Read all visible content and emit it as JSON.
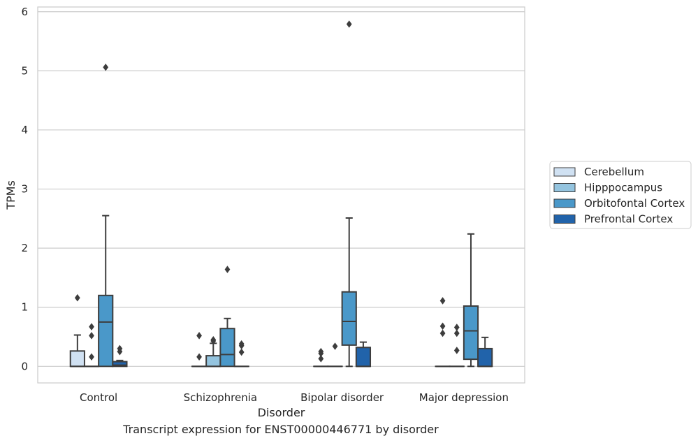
{
  "caption": "Transcript expression for ENST00000446771 by disorder",
  "chart_data": {
    "type": "box",
    "xlabel": "Disorder",
    "ylabel": "TPMs",
    "ylim": [
      -0.28,
      6.08
    ],
    "yticks": [
      0,
      1,
      2,
      3,
      4,
      5,
      6
    ],
    "grid": "horizontal",
    "legend_position": "right",
    "categories": [
      "Control",
      "Schizophrenia",
      "Bipolar disorder",
      "Major depression"
    ],
    "series": [
      {
        "name": "Cerebellum",
        "color": "#d0e1f2",
        "boxes": [
          {
            "whislo": 0,
            "q1": 0,
            "med": 0,
            "q3": 0.26,
            "whishi": 0.53,
            "fliers": [
              1.16
            ]
          },
          {
            "whislo": 0,
            "q1": 0,
            "med": 0,
            "q3": 0,
            "whishi": 0,
            "fliers": [
              0.16,
              0.52
            ]
          },
          {
            "whislo": 0,
            "q1": 0,
            "med": 0,
            "q3": 0,
            "whishi": 0,
            "fliers": [
              0.13,
              0.22,
              0.25
            ]
          },
          {
            "whislo": 0,
            "q1": 0,
            "med": 0,
            "q3": 0,
            "whishi": 0,
            "fliers": [
              0.56,
              0.68,
              1.11
            ]
          }
        ]
      },
      {
        "name": "Hipppocampus",
        "color": "#94c4df",
        "boxes": [
          {
            "whislo": 0,
            "q1": 0,
            "med": 0,
            "q3": 0,
            "whishi": 0,
            "fliers": [
              0.16,
              0.52,
              0.67
            ]
          },
          {
            "whislo": 0,
            "q1": 0,
            "med": 0,
            "q3": 0.18,
            "whishi": 0.39,
            "fliers": [
              0.43,
              0.45
            ]
          },
          {
            "whislo": 0,
            "q1": 0,
            "med": 0,
            "q3": 0,
            "whishi": 0,
            "fliers": [
              0.34
            ]
          },
          {
            "whislo": 0,
            "q1": 0,
            "med": 0,
            "q3": 0,
            "whishi": 0,
            "fliers": [
              0.27,
              0.56,
              0.66
            ]
          }
        ]
      },
      {
        "name": "Orbitofontal Cortex",
        "color": "#4a98c9",
        "boxes": [
          {
            "whislo": 0,
            "q1": 0,
            "med": 0.75,
            "q3": 1.2,
            "whishi": 2.55,
            "fliers": [
              5.06
            ]
          },
          {
            "whislo": 0,
            "q1": 0,
            "med": 0.2,
            "q3": 0.64,
            "whishi": 0.81,
            "fliers": [
              1.64
            ]
          },
          {
            "whislo": 0,
            "q1": 0.36,
            "med": 0.76,
            "q3": 1.26,
            "whishi": 2.51,
            "fliers": [
              5.79
            ]
          },
          {
            "whislo": 0,
            "q1": 0.12,
            "med": 0.6,
            "q3": 1.02,
            "whishi": 2.24,
            "fliers": []
          }
        ]
      },
      {
        "name": "Prefrontal Cortex",
        "color": "#2163aa",
        "boxes": [
          {
            "whislo": 0,
            "q1": 0,
            "med": 0.02,
            "q3": 0.08,
            "whishi": 0.1,
            "fliers": [
              0.25,
              0.3
            ]
          },
          {
            "whislo": 0,
            "q1": 0,
            "med": 0,
            "q3": 0,
            "whishi": 0,
            "fliers": [
              0.24,
              0.35,
              0.38
            ]
          },
          {
            "whislo": 0,
            "q1": 0,
            "med": 0,
            "q3": 0.32,
            "whishi": 0.41,
            "fliers": []
          },
          {
            "whislo": 0,
            "q1": 0,
            "med": 0,
            "q3": 0.3,
            "whishi": 0.49,
            "fliers": []
          }
        ]
      }
    ]
  }
}
